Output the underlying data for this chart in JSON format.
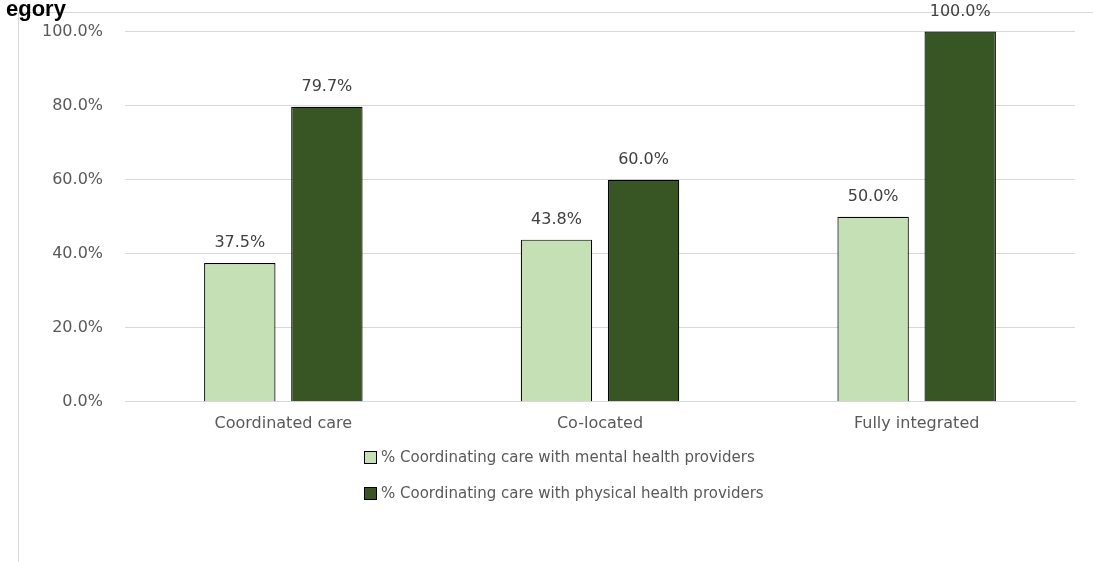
{
  "chart_data": {
    "type": "bar",
    "title": "egory",
    "categories": [
      "Coordinated care",
      "Co-located",
      "Fully integrated"
    ],
    "series": [
      {
        "name": "% Coordinating care with mental health providers",
        "color": "#c5e0b4",
        "values": [
          37.5,
          43.8,
          50.0
        ],
        "value_labels": [
          "37.5%",
          "43.8%",
          "50.0%"
        ]
      },
      {
        "name": "% Coordinating care with physical health providers",
        "color": "#375623",
        "values": [
          79.7,
          60.0,
          100.0
        ],
        "value_labels": [
          "79.7%",
          "60.0%",
          "100.0%"
        ]
      }
    ],
    "ylim": [
      0,
      100
    ],
    "yticks": [
      {
        "value": 0,
        "label": "0.0%"
      },
      {
        "value": 20,
        "label": "20.0%"
      },
      {
        "value": 40,
        "label": "40.0%"
      },
      {
        "value": 60,
        "label": "60.0%"
      },
      {
        "value": 80,
        "label": "80.0%"
      },
      {
        "value": 100,
        "label": "100.0%"
      }
    ],
    "grid": "y",
    "legend": "bottom"
  }
}
